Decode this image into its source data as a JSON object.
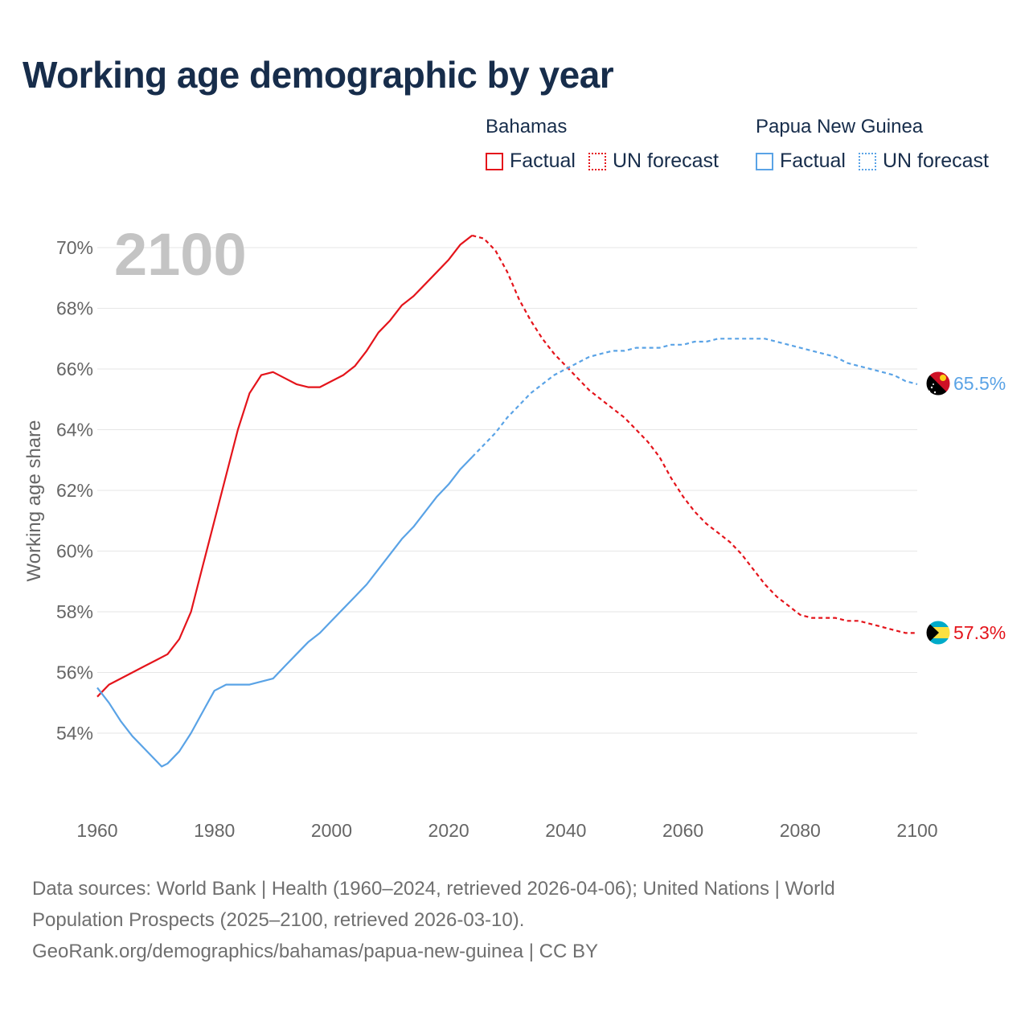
{
  "title": "Working age demographic by year",
  "legend": {
    "groups": [
      {
        "name": "Bahamas",
        "factual_label": "Factual",
        "forecast_label": "UN forecast",
        "color": "#e4141b"
      },
      {
        "name": "Papua New Guinea",
        "factual_label": "Factual",
        "forecast_label": "UN forecast",
        "color": "#5aa3e6"
      }
    ]
  },
  "footer": {
    "line1": "Data sources: World Bank | Health (1960–2024, retrieved 2026-04-06); United Nations | World",
    "line2": "Population Prospects (2025–2100, retrieved 2026-03-10).",
    "line3": "GeoRank.org/demographics/bahamas/papua-new-guinea | CC BY"
  },
  "chart_data": {
    "type": "line",
    "title": "Working age demographic by year",
    "year_label": "2100",
    "xlabel": "",
    "ylabel": "Working age share",
    "xlim": [
      1960,
      2100
    ],
    "ylim": [
      52,
      71
    ],
    "x_ticks": [
      "1960",
      "1980",
      "2000",
      "2020",
      "2040",
      "2060",
      "2080",
      "2100"
    ],
    "x_tick_values": [
      1960,
      1980,
      2000,
      2020,
      2040,
      2060,
      2080,
      2100
    ],
    "y_ticks": [
      "54%",
      "56%",
      "58%",
      "60%",
      "62%",
      "64%",
      "66%",
      "68%",
      "70%"
    ],
    "y_tick_values": [
      54,
      56,
      58,
      60,
      62,
      64,
      66,
      68,
      70
    ],
    "grid": true,
    "legend_position": "top-right",
    "factual_end_year": 2024,
    "series": [
      {
        "name": "Bahamas",
        "color": "#e4141b",
        "end_label": "57.3%",
        "flag": "bahamas",
        "x": [
          1960,
          1962,
          1964,
          1966,
          1968,
          1970,
          1972,
          1974,
          1976,
          1978,
          1980,
          1982,
          1984,
          1986,
          1988,
          1990,
          1992,
          1994,
          1996,
          1998,
          2000,
          2002,
          2004,
          2006,
          2008,
          2010,
          2012,
          2014,
          2016,
          2018,
          2020,
          2022,
          2024,
          2026,
          2028,
          2030,
          2032,
          2034,
          2036,
          2038,
          2040,
          2042,
          2044,
          2046,
          2048,
          2050,
          2052,
          2054,
          2056,
          2058,
          2060,
          2062,
          2064,
          2066,
          2068,
          2070,
          2072,
          2074,
          2076,
          2078,
          2080,
          2082,
          2084,
          2086,
          2088,
          2090,
          2092,
          2094,
          2096,
          2098,
          2100
        ],
        "values": [
          55.2,
          55.6,
          55.8,
          56.0,
          56.2,
          56.4,
          56.6,
          57.1,
          58.0,
          59.5,
          61.0,
          62.5,
          64.0,
          65.2,
          65.8,
          65.9,
          65.7,
          65.5,
          65.4,
          65.4,
          65.6,
          65.8,
          66.1,
          66.6,
          67.2,
          67.6,
          68.1,
          68.4,
          68.8,
          69.2,
          69.6,
          70.1,
          70.4,
          70.3,
          69.9,
          69.2,
          68.3,
          67.6,
          67.0,
          66.5,
          66.1,
          65.7,
          65.3,
          65.0,
          64.7,
          64.4,
          64.0,
          63.6,
          63.1,
          62.4,
          61.8,
          61.3,
          60.9,
          60.6,
          60.3,
          59.9,
          59.4,
          58.9,
          58.5,
          58.2,
          57.9,
          57.8,
          57.8,
          57.8,
          57.7,
          57.7,
          57.6,
          57.5,
          57.4,
          57.3,
          57.3
        ]
      },
      {
        "name": "Papua New Guinea",
        "color": "#5aa3e6",
        "end_label": "65.5%",
        "flag": "papua-new-guinea",
        "x": [
          1960,
          1962,
          1964,
          1966,
          1968,
          1970,
          1971,
          1972,
          1974,
          1976,
          1978,
          1980,
          1982,
          1984,
          1986,
          1988,
          1990,
          1992,
          1994,
          1996,
          1998,
          2000,
          2002,
          2004,
          2006,
          2008,
          2010,
          2012,
          2014,
          2016,
          2018,
          2020,
          2022,
          2024,
          2026,
          2028,
          2030,
          2032,
          2034,
          2036,
          2038,
          2040,
          2042,
          2044,
          2046,
          2048,
          2050,
          2052,
          2054,
          2056,
          2058,
          2060,
          2062,
          2064,
          2066,
          2068,
          2070,
          2072,
          2074,
          2076,
          2078,
          2080,
          2082,
          2084,
          2086,
          2088,
          2090,
          2092,
          2094,
          2096,
          2098,
          2100
        ],
        "values": [
          55.5,
          55.0,
          54.4,
          53.9,
          53.5,
          53.1,
          52.9,
          53.0,
          53.4,
          54.0,
          54.7,
          55.4,
          55.6,
          55.6,
          55.6,
          55.7,
          55.8,
          56.2,
          56.6,
          57.0,
          57.3,
          57.7,
          58.1,
          58.5,
          58.9,
          59.4,
          59.9,
          60.4,
          60.8,
          61.3,
          61.8,
          62.2,
          62.7,
          63.1,
          63.5,
          63.9,
          64.4,
          64.8,
          65.2,
          65.5,
          65.8,
          66.0,
          66.2,
          66.4,
          66.5,
          66.6,
          66.6,
          66.7,
          66.7,
          66.7,
          66.8,
          66.8,
          66.9,
          66.9,
          67.0,
          67.0,
          67.0,
          67.0,
          67.0,
          66.9,
          66.8,
          66.7,
          66.6,
          66.5,
          66.4,
          66.2,
          66.1,
          66.0,
          65.9,
          65.8,
          65.6,
          65.5
        ]
      }
    ]
  }
}
